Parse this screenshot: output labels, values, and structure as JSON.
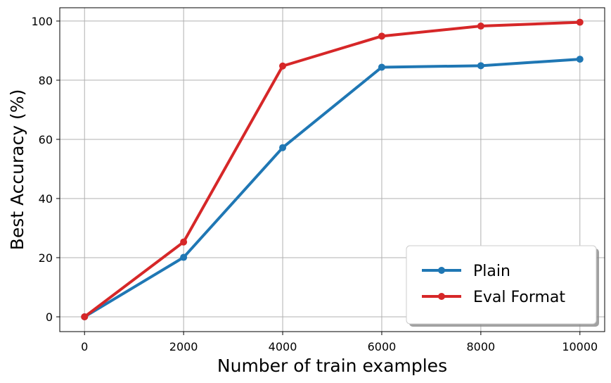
{
  "chart_data": {
    "type": "line",
    "title": "",
    "xlabel": "Number of train examples",
    "ylabel": "Best Accuracy (%)",
    "x": [
      0,
      2000,
      4000,
      6000,
      8000,
      10000
    ],
    "xticks": [
      "0",
      "2000",
      "4000",
      "6000",
      "8000",
      "10000"
    ],
    "yticks": [
      "0",
      "20",
      "40",
      "60",
      "80",
      "100"
    ],
    "xlim": [
      -500,
      10500
    ],
    "ylim": [
      -5,
      104.5
    ],
    "grid": true,
    "legend_position": "lower-right",
    "series": [
      {
        "name": "Plain",
        "color": "#1f77b4",
        "values": [
          0,
          20.1,
          57.2,
          84.4,
          84.9,
          87.1
        ]
      },
      {
        "name": "Eval Format",
        "color": "#d62728",
        "values": [
          0,
          25.3,
          84.8,
          94.9,
          98.3,
          99.6
        ]
      }
    ]
  }
}
